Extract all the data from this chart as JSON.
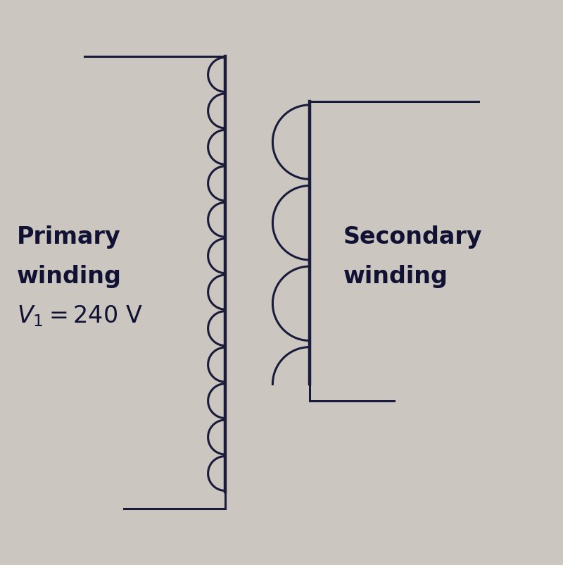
{
  "background_color": "#cbc7c0",
  "primary_label_line1": "Primary",
  "primary_label_line2": "winding",
  "secondary_label_line1": "Secondary",
  "secondary_label_line2": "winding",
  "line_color": "#1a1a3a",
  "font_size_label": 24,
  "primary_turns": 12,
  "secondary_turns": 3.5,
  "fig_width": 8.0,
  "fig_height": 8.02,
  "dpi": 100
}
